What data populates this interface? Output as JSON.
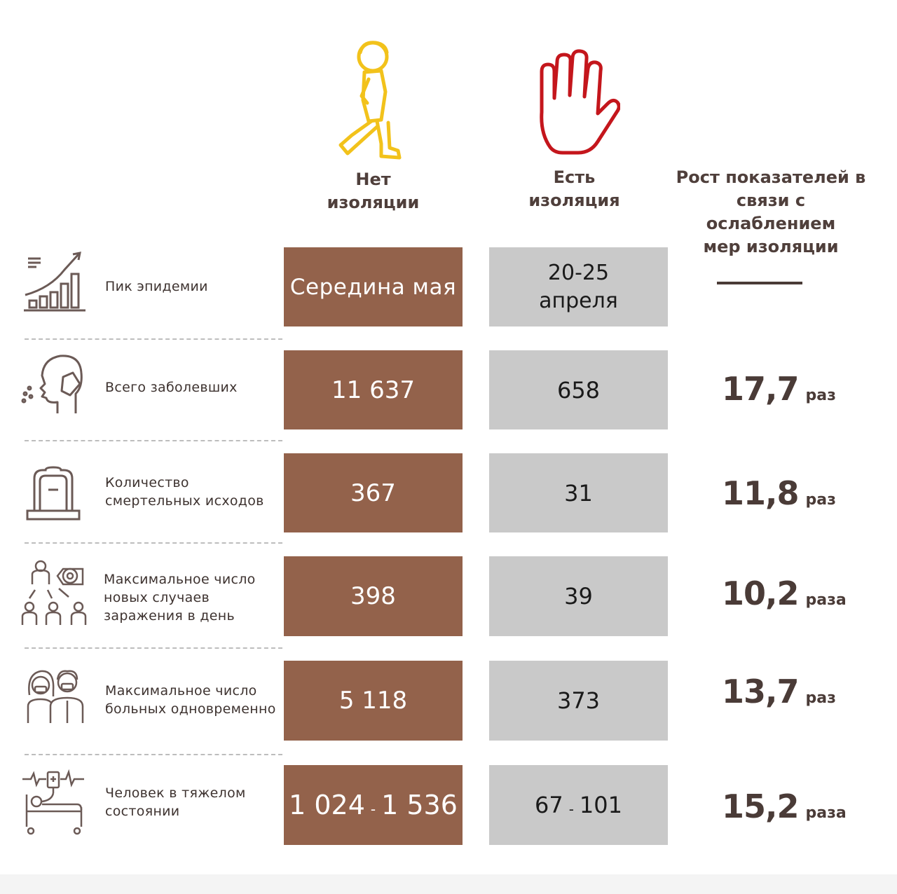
{
  "headers": {
    "no_isolation": [
      "Нет",
      "изоляции"
    ],
    "isolation": [
      "Есть",
      "изоляция"
    ],
    "growth": [
      "Рост показателей в",
      "связи с ослаблением",
      "мер изоляции"
    ]
  },
  "colors": {
    "no_isolation_icon": "#f2c21b",
    "isolation_icon": "#c4161c",
    "no_isolation_box": "#93624b",
    "isolation_box": "#c9c9c9",
    "text": "#4a3b37"
  },
  "icons": {
    "no_isolation": "walking-child-icon",
    "isolation": "stop-hand-icon"
  },
  "rows": [
    {
      "icon": "growth-chart-icon",
      "label": [
        "Пик эпидемии"
      ],
      "no_isolation": "Середина мая",
      "isolation": [
        "20-25",
        "апреля"
      ],
      "growth": "—"
    },
    {
      "icon": "coughing-person-icon",
      "label": [
        "Всего заболевших"
      ],
      "no_isolation": "11 637",
      "isolation": "658",
      "growth_num": "17,7",
      "growth_unit": "раз"
    },
    {
      "icon": "gravestone-icon",
      "label": [
        "Количество",
        "смертельных исходов"
      ],
      "no_isolation": "367",
      "isolation": "31",
      "growth_num": "11,8",
      "growth_unit": "раз"
    },
    {
      "icon": "virus-spread-icon",
      "label": [
        "Максимальное число",
        "новых случаев",
        "заражения в день"
      ],
      "no_isolation": "398",
      "isolation": "39",
      "growth_num": "10,2",
      "growth_unit": "раза"
    },
    {
      "icon": "masked-people-icon",
      "label": [
        "Максимальное число",
        "больных одновременно"
      ],
      "no_isolation": "5 118",
      "isolation": "373",
      "growth_num": "13,7",
      "growth_unit": "раз"
    },
    {
      "icon": "hospital-bed-icon",
      "label": [
        "Человек в тяжелом",
        "состоянии"
      ],
      "no_isolation_from": "1 024",
      "no_isolation_to": "1 536",
      "isolation_from": "67",
      "isolation_to": "101",
      "range_sep": "-",
      "growth_num": "15,2",
      "growth_unit": "раза"
    }
  ]
}
